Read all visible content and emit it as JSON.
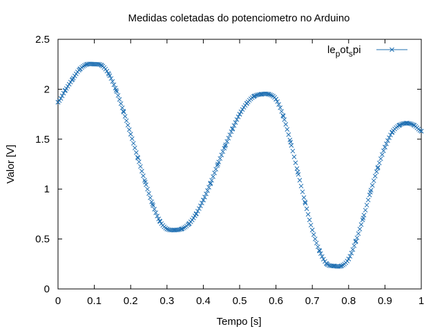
{
  "chart_data": {
    "type": "line",
    "title": "Medidas coletadas do potenciometro no Arduino",
    "xlabel": "Tempo [s]",
    "ylabel": "Valor [V]",
    "xlim": [
      0,
      1
    ],
    "ylim": [
      0,
      2.5
    ],
    "grid": false,
    "legend_position": "top-right",
    "x_ticks": [
      "0",
      "0.1",
      "0.2",
      "0.3",
      "0.4",
      "0.5",
      "0.6",
      "0.7",
      "0.8",
      "0.9",
      "1"
    ],
    "y_ticks": [
      "0",
      "0.5",
      "1",
      "1.5",
      "2",
      "2.5"
    ],
    "series": [
      {
        "name_parts": [
          "le",
          "p",
          "ot",
          "s",
          "pi"
        ],
        "color": "#1f6fb2",
        "marker": "x",
        "x": [
          0.0,
          0.02,
          0.04,
          0.06,
          0.08,
          0.1,
          0.12,
          0.14,
          0.16,
          0.18,
          0.2,
          0.22,
          0.24,
          0.26,
          0.28,
          0.3,
          0.32,
          0.34,
          0.36,
          0.38,
          0.4,
          0.42,
          0.44,
          0.46,
          0.48,
          0.5,
          0.52,
          0.54,
          0.56,
          0.58,
          0.6,
          0.62,
          0.64,
          0.66,
          0.68,
          0.7,
          0.72,
          0.74,
          0.76,
          0.78,
          0.8,
          0.82,
          0.84,
          0.86,
          0.88,
          0.9,
          0.92,
          0.94,
          0.96,
          0.98,
          1.0
        ],
        "y": [
          1.87,
          1.99,
          2.1,
          2.2,
          2.25,
          2.25,
          2.24,
          2.15,
          1.99,
          1.78,
          1.55,
          1.31,
          1.07,
          0.85,
          0.68,
          0.6,
          0.59,
          0.6,
          0.65,
          0.75,
          0.89,
          1.06,
          1.25,
          1.43,
          1.6,
          1.75,
          1.86,
          1.93,
          1.95,
          1.95,
          1.9,
          1.73,
          1.47,
          1.17,
          0.87,
          0.59,
          0.38,
          0.25,
          0.23,
          0.23,
          0.3,
          0.48,
          0.71,
          0.97,
          1.21,
          1.42,
          1.57,
          1.64,
          1.66,
          1.64,
          1.58
        ]
      }
    ]
  }
}
